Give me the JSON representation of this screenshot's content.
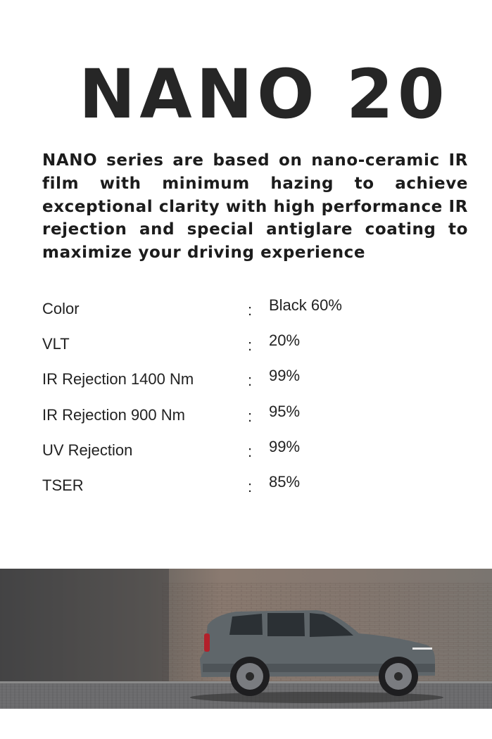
{
  "title": "NANO 20",
  "description": "NANO series are based on nano-ceramic IR film with minimum hazing to achieve exceptional clarity with high performance IR rejection and special antiglare coating to maximize your driving experience",
  "specs": [
    {
      "label": "Color",
      "value": "Black 60%"
    },
    {
      "label": "VLT",
      "value": "20%"
    },
    {
      "label": "IR Rejection 1400 Nm",
      "value": "99%"
    },
    {
      "label": "IR Rejection 900 Nm",
      "value": "95%"
    },
    {
      "label": "UV Rejection",
      "value": "99%"
    },
    {
      "label": "TSER",
      "value": "85%"
    }
  ],
  "separator": ":",
  "colors": {
    "title": "#262626",
    "text": "#222222",
    "car_body": "#5f666a",
    "taillight": "#b3202a"
  }
}
